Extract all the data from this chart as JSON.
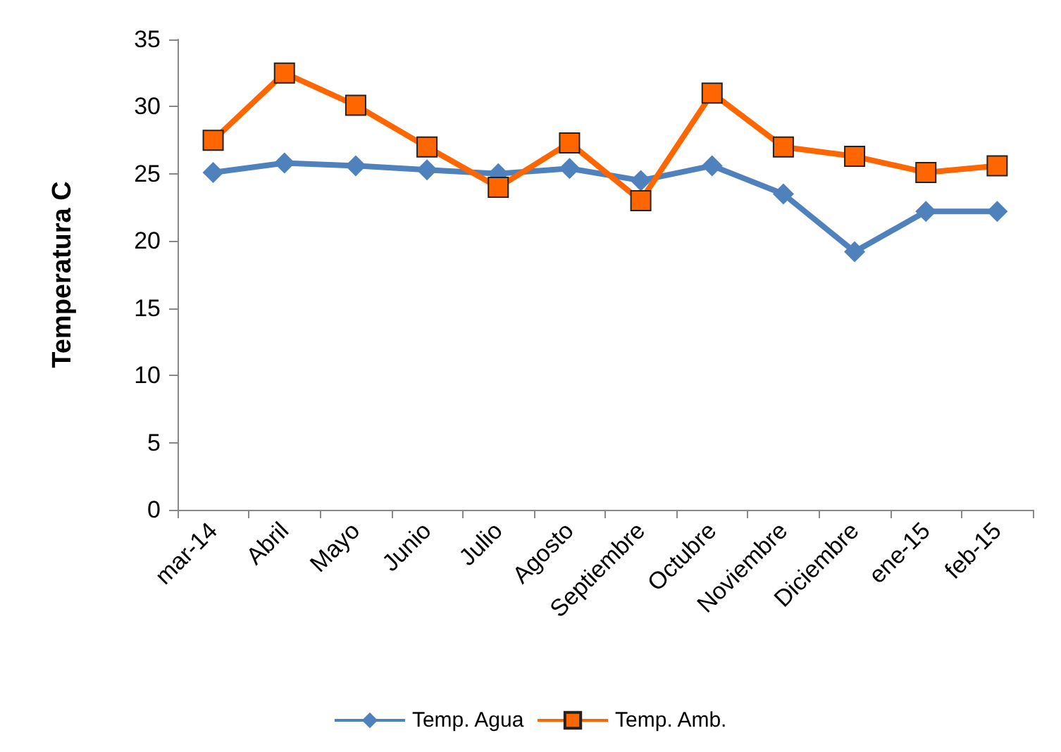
{
  "chart_data": {
    "type": "line",
    "ylabel": "Temperatura C",
    "categories": [
      "mar-14",
      "Abril",
      "Mayo",
      "Junio",
      "Julio",
      "Agosto",
      "Septiembre",
      "Octubre",
      "Noviembre",
      "Diciembre",
      "ene-15",
      "feb-15"
    ],
    "series": [
      {
        "name": "Temp. Agua",
        "color": "#4f81bd",
        "marker": "diamond",
        "values": [
          25.1,
          25.8,
          25.6,
          25.3,
          25.0,
          25.4,
          24.5,
          25.6,
          23.5,
          19.2,
          22.2,
          22.2
        ]
      },
      {
        "name": "Temp. Amb.",
        "color": "#ff6600",
        "marker": "square",
        "values": [
          27.5,
          32.5,
          30.1,
          27.0,
          24.0,
          27.3,
          23.0,
          31.0,
          27.0,
          26.3,
          25.1,
          25.6
        ]
      }
    ],
    "ylim": [
      0,
      35
    ],
    "yticks": [
      0,
      5,
      10,
      15,
      20,
      25,
      30,
      35
    ],
    "grid": false,
    "legend": "bottom"
  }
}
